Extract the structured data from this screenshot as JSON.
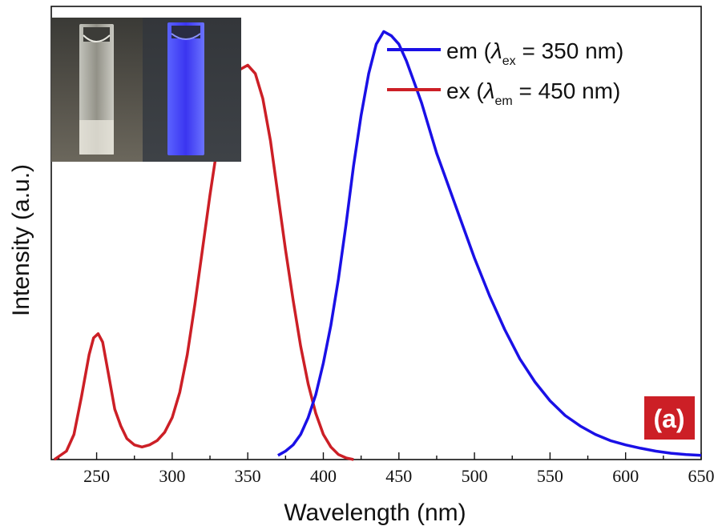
{
  "chart_data": {
    "type": "line",
    "xlabel": "Wavelength (nm)",
    "ylabel": "Intensity (a.u.)",
    "xlim": [
      220,
      650
    ],
    "ylim": [
      0,
      1.08
    ],
    "xticks": [
      250,
      300,
      350,
      400,
      450,
      500,
      550,
      600,
      650
    ],
    "grid": false,
    "legend_position": "top-right",
    "panel_label": "(a)",
    "inset": "photograph of two cuvettes: clear under daylight, blue emission under UV",
    "colors": {
      "em": "#1a10e6",
      "ex": "#cc1f26",
      "panel_label_bg": "#cc1f26"
    },
    "series": [
      {
        "id": "em",
        "name": "em (λex = 350 nm)",
        "legend_main": "em (",
        "legend_symbol": "λ",
        "legend_sub": "ex",
        "legend_tail": " = 350 nm)",
        "x": [
          370,
          375,
          380,
          385,
          390,
          395,
          400,
          405,
          410,
          415,
          420,
          425,
          430,
          435,
          440,
          445,
          450,
          455,
          460,
          465,
          470,
          475,
          480,
          490,
          500,
          510,
          520,
          530,
          540,
          550,
          560,
          570,
          580,
          590,
          600,
          610,
          620,
          630,
          640,
          650
        ],
        "values": [
          0.01,
          0.02,
          0.035,
          0.06,
          0.1,
          0.155,
          0.23,
          0.32,
          0.43,
          0.56,
          0.7,
          0.82,
          0.92,
          0.99,
          1.02,
          1.01,
          0.99,
          0.95,
          0.9,
          0.85,
          0.79,
          0.73,
          0.68,
          0.58,
          0.48,
          0.39,
          0.31,
          0.24,
          0.185,
          0.14,
          0.105,
          0.08,
          0.06,
          0.045,
          0.035,
          0.027,
          0.02,
          0.015,
          0.012,
          0.01
        ]
      },
      {
        "id": "ex",
        "name": "ex (λem = 450 nm)",
        "legend_main": "ex (",
        "legend_symbol": "λ",
        "legend_sub": "em",
        "legend_tail": " = 450 nm)",
        "x": [
          222,
          230,
          235,
          240,
          245,
          248,
          251,
          254,
          258,
          262,
          266,
          270,
          275,
          280,
          285,
          290,
          295,
          300,
          305,
          310,
          315,
          320,
          325,
          330,
          335,
          340,
          345,
          350,
          355,
          360,
          365,
          370,
          375,
          380,
          385,
          390,
          395,
          400,
          405,
          410,
          415,
          420
        ],
        "values": [
          0.0,
          0.02,
          0.06,
          0.15,
          0.25,
          0.29,
          0.3,
          0.28,
          0.2,
          0.12,
          0.08,
          0.05,
          0.035,
          0.03,
          0.035,
          0.045,
          0.065,
          0.1,
          0.16,
          0.25,
          0.37,
          0.5,
          0.63,
          0.75,
          0.84,
          0.9,
          0.93,
          0.94,
          0.92,
          0.86,
          0.76,
          0.63,
          0.5,
          0.38,
          0.27,
          0.18,
          0.11,
          0.06,
          0.03,
          0.012,
          0.004,
          0.0
        ]
      }
    ]
  }
}
